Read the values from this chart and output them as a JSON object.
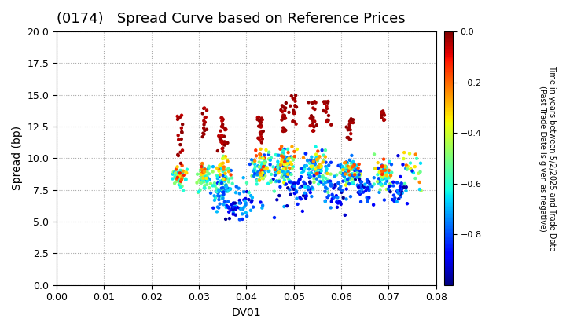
{
  "title": "(0174)   Spread Curve based on Reference Prices",
  "xlabel": "DV01",
  "ylabel": "Spread (bp)",
  "xlim": [
    0.0,
    0.08
  ],
  "ylim": [
    0.0,
    20.0
  ],
  "xticks": [
    0.0,
    0.01,
    0.02,
    0.03,
    0.04,
    0.05,
    0.06,
    0.07,
    0.08
  ],
  "yticks": [
    0.0,
    2.5,
    5.0,
    7.5,
    10.0,
    12.5,
    15.0,
    17.5,
    20.0
  ],
  "colorbar_label": "Time in years between 5/2/2025 and Trade Date\n(Past Trade Date is given as negative)",
  "colorbar_ticks": [
    0.0,
    -0.2,
    -0.4,
    -0.6,
    -0.8
  ],
  "cmap": "jet",
  "color_vmin": -1.0,
  "color_vmax": 0.0,
  "scatter_size": 10,
  "grid_color": "#aaaaaa",
  "background_color": "#ffffff",
  "title_fontsize": 13,
  "axis_fontsize": 10,
  "tick_fontsize": 9
}
